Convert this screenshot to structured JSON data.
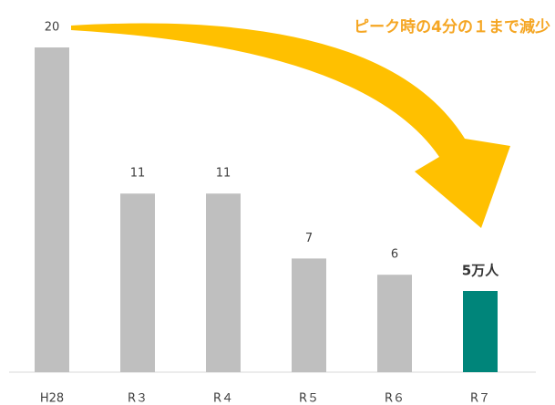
{
  "chart_data": {
    "type": "bar",
    "annotation": "ピーク時の4分の１まで減少",
    "categories": [
      "H28",
      "R３",
      "R４",
      "R５",
      "R６",
      "R７"
    ],
    "values": [
      20,
      11,
      11,
      7,
      6,
      5
    ],
    "value_labels": [
      "20",
      "11",
      "11",
      "7",
      "6",
      "5万人"
    ],
    "colors": [
      "#bfbfbf",
      "#bfbfbf",
      "#bfbfbf",
      "#bfbfbf",
      "#bfbfbf",
      "#00857a"
    ]
  }
}
